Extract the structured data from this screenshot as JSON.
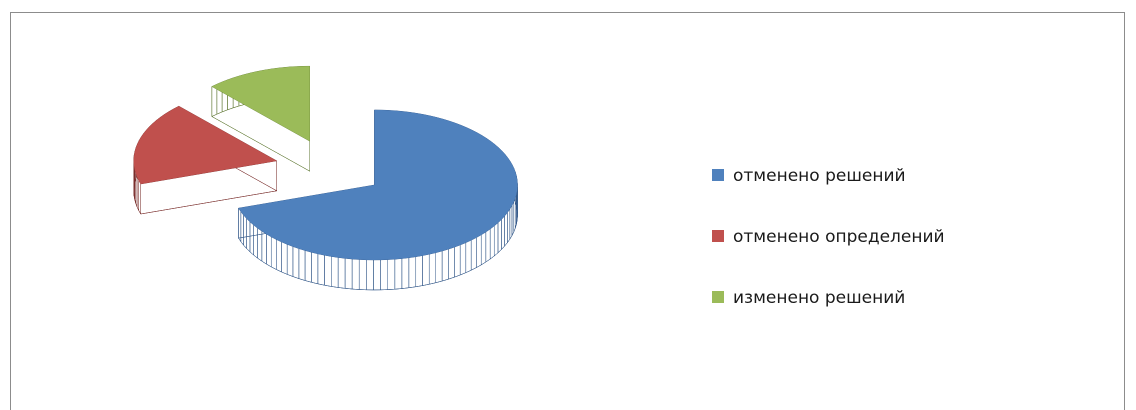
{
  "chart_data": {
    "type": "pie",
    "categories": [
      "отменено решений",
      "отменено определений",
      "изменено решений"
    ],
    "values": [
      70,
      18,
      12
    ],
    "colors": [
      "#4f81bd",
      "#c0504d",
      "#9bbb59"
    ],
    "side_colors": [
      "#2f5587",
      "#7a2e2c",
      "#5d7630"
    ],
    "legend": "right",
    "exploded": true,
    "three_d": true
  }
}
